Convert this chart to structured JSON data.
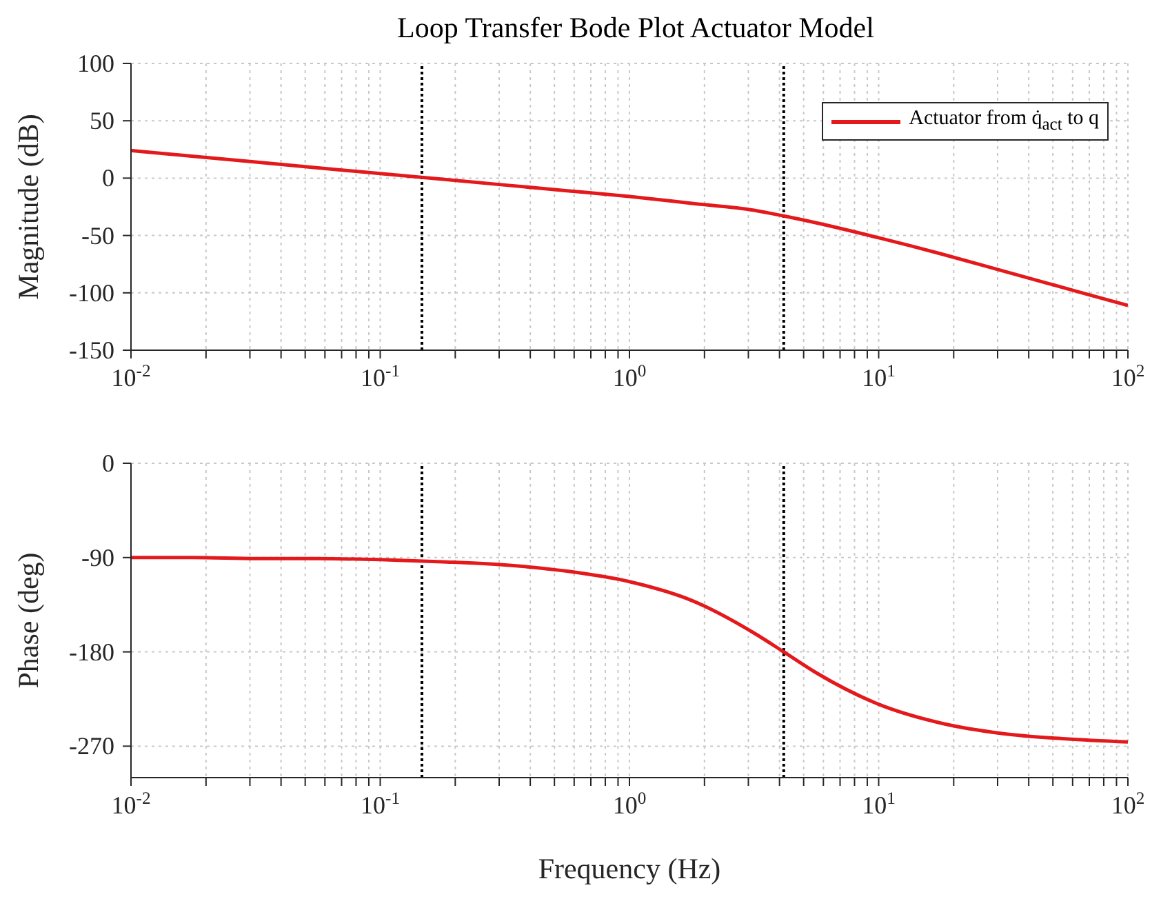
{
  "chart_data": [
    {
      "type": "line",
      "title": "Loop Transfer Bode Plot Actuator Model",
      "ylabel": "Magnitude (dB)",
      "log": "x",
      "grid": true,
      "legend": "top right",
      "xlim": [
        0.01,
        100
      ],
      "ylim": [
        -150,
        100
      ],
      "yticks": [
        -150,
        -100,
        -50,
        0,
        50,
        100
      ],
      "xticks": [
        {
          "value": 0.01,
          "label": "10$^{-2}$"
        },
        {
          "value": 0.02,
          "label": null
        },
        {
          "value": 0.03,
          "label": null
        },
        {
          "value": 0.04,
          "label": null
        },
        {
          "value": 0.05,
          "label": null
        },
        {
          "value": 0.06,
          "label": null
        },
        {
          "value": 0.07,
          "label": null
        },
        {
          "value": 0.08,
          "label": null
        },
        {
          "value": 0.09,
          "label": null
        },
        {
          "value": 0.1,
          "label": "10$^{-1}$"
        },
        {
          "value": 0.2,
          "label": null
        },
        {
          "value": 0.3,
          "label": null
        },
        {
          "value": 0.4,
          "label": null
        },
        {
          "value": 0.5,
          "label": null
        },
        {
          "value": 0.6,
          "label": null
        },
        {
          "value": 0.7,
          "label": null
        },
        {
          "value": 0.8,
          "label": null
        },
        {
          "value": 0.9,
          "label": null
        },
        {
          "value": 1,
          "label": "10$^{0}$"
        },
        {
          "value": 2,
          "label": null
        },
        {
          "value": 3,
          "label": null
        },
        {
          "value": 4,
          "label": null
        },
        {
          "value": 5,
          "label": null
        },
        {
          "value": 6,
          "label": null
        },
        {
          "value": 7,
          "label": null
        },
        {
          "value": 8,
          "label": null
        },
        {
          "value": 9,
          "label": null
        },
        {
          "value": 10,
          "label": "10$^{1}$"
        },
        {
          "value": 20,
          "label": null
        },
        {
          "value": 30,
          "label": null
        },
        {
          "value": 40,
          "label": null
        },
        {
          "value": 50,
          "label": null
        },
        {
          "value": 60,
          "label": null
        },
        {
          "value": 70,
          "label": null
        },
        {
          "value": 80,
          "label": null
        },
        {
          "value": 90,
          "label": null
        },
        {
          "value": 100,
          "label": "10$^{2}$"
        }
      ],
      "x": [
        0.01,
        0.0178,
        0.0316,
        0.0562,
        0.1,
        0.178,
        0.316,
        0.562,
        1,
        1.78,
        3.16,
        4.16,
        5.62,
        10,
        17.8,
        31.6,
        56.2,
        100
      ],
      "series": [
        {
          "name": "Actuator from q̇$_{act}$ to q",
          "color": "#e3191c",
          "values": [
            24,
            19,
            14,
            9,
            4,
            -1,
            -6,
            -11,
            -16,
            -22,
            -28,
            -33,
            -39,
            -52,
            -66,
            -81,
            -96,
            -111
          ]
        }
      ],
      "ref_lines": [
        {
          "axis": "x",
          "value": 0.147,
          "color": "#000000",
          "line_style": "dotted"
        },
        {
          "axis": "x",
          "value": 4.16,
          "color": "#000000",
          "line_style": "dotted"
        }
      ]
    },
    {
      "type": "line",
      "xlabel": "Frequency (Hz)",
      "ylabel": "Phase (deg)",
      "log": "x",
      "grid": true,
      "xlim": [
        0.01,
        100
      ],
      "ylim": [
        -300,
        0
      ],
      "yticks": [
        -270,
        -180,
        -90,
        0
      ],
      "xticks": [
        {
          "value": 0.01,
          "label": "10$^{-2}$"
        },
        {
          "value": 0.02,
          "label": null
        },
        {
          "value": 0.03,
          "label": null
        },
        {
          "value": 0.04,
          "label": null
        },
        {
          "value": 0.05,
          "label": null
        },
        {
          "value": 0.06,
          "label": null
        },
        {
          "value": 0.07,
          "label": null
        },
        {
          "value": 0.08,
          "label": null
        },
        {
          "value": 0.09,
          "label": null
        },
        {
          "value": 0.1,
          "label": "10$^{-1}$"
        },
        {
          "value": 0.2,
          "label": null
        },
        {
          "value": 0.3,
          "label": null
        },
        {
          "value": 0.4,
          "label": null
        },
        {
          "value": 0.5,
          "label": null
        },
        {
          "value": 0.6,
          "label": null
        },
        {
          "value": 0.7,
          "label": null
        },
        {
          "value": 0.8,
          "label": null
        },
        {
          "value": 0.9,
          "label": null
        },
        {
          "value": 1,
          "label": "10$^{0}$"
        },
        {
          "value": 2,
          "label": null
        },
        {
          "value": 3,
          "label": null
        },
        {
          "value": 4,
          "label": null
        },
        {
          "value": 5,
          "label": null
        },
        {
          "value": 6,
          "label": null
        },
        {
          "value": 7,
          "label": null
        },
        {
          "value": 8,
          "label": null
        },
        {
          "value": 9,
          "label": null
        },
        {
          "value": 10,
          "label": "10$^{1}$"
        },
        {
          "value": 20,
          "label": null
        },
        {
          "value": 30,
          "label": null
        },
        {
          "value": 40,
          "label": null
        },
        {
          "value": 50,
          "label": null
        },
        {
          "value": 60,
          "label": null
        },
        {
          "value": 70,
          "label": null
        },
        {
          "value": 80,
          "label": null
        },
        {
          "value": 90,
          "label": null
        },
        {
          "value": 100,
          "label": "10$^{2}$"
        }
      ],
      "x": [
        0.01,
        0.0178,
        0.0316,
        0.0562,
        0.1,
        0.178,
        0.316,
        0.562,
        1,
        1.78,
        3.16,
        4.16,
        5.62,
        10,
        17.8,
        31.6,
        56.2,
        100
      ],
      "series": [
        {
          "color": "#e3191c",
          "values": [
            -90,
            -90,
            -91,
            -91,
            -92,
            -94,
            -97,
            -103,
            -113,
            -131,
            -162,
            -180,
            -200,
            -230,
            -248,
            -258,
            -263,
            -266
          ]
        }
      ],
      "ref_lines": [
        {
          "axis": "x",
          "value": 0.147,
          "color": "#000000",
          "line_style": "dotted"
        },
        {
          "axis": "x",
          "value": 4.16,
          "color": "#000000",
          "line_style": "dotted"
        }
      ]
    }
  ]
}
